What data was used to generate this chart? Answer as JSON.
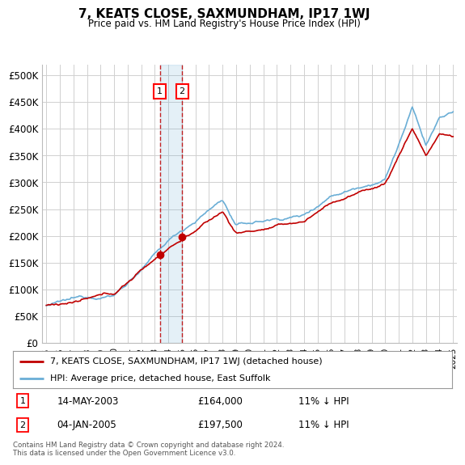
{
  "title": "7, KEATS CLOSE, SAXMUNDHAM, IP17 1WJ",
  "subtitle": "Price paid vs. HM Land Registry's House Price Index (HPI)",
  "yticks": [
    0,
    50000,
    100000,
    150000,
    200000,
    250000,
    300000,
    350000,
    400000,
    450000,
    500000
  ],
  "ytick_labels": [
    "£0",
    "£50K",
    "£100K",
    "£150K",
    "£200K",
    "£250K",
    "£300K",
    "£350K",
    "£400K",
    "£450K",
    "£500K"
  ],
  "hpi_color": "#6aaed6",
  "price_color": "#c00000",
  "sale1_price": 164000,
  "sale1_price_label": "£164,000",
  "sale1_hpi_label": "11% ↓ HPI",
  "sale1_date_label": "14-MAY-2003",
  "sale1_x": 2003.37,
  "sale2_price": 197500,
  "sale2_price_label": "£197,500",
  "sale2_hpi_label": "11% ↓ HPI",
  "sale2_date_label": "04-JAN-2005",
  "sale2_x": 2005.01,
  "legend_line1": "7, KEATS CLOSE, SAXMUNDHAM, IP17 1WJ (detached house)",
  "legend_line2": "HPI: Average price, detached house, East Suffolk",
  "footnote": "Contains HM Land Registry data © Crown copyright and database right 2024.\nThis data is licensed under the Open Government Licence v3.0.",
  "background_color": "#ffffff",
  "grid_color": "#d0d0d0"
}
